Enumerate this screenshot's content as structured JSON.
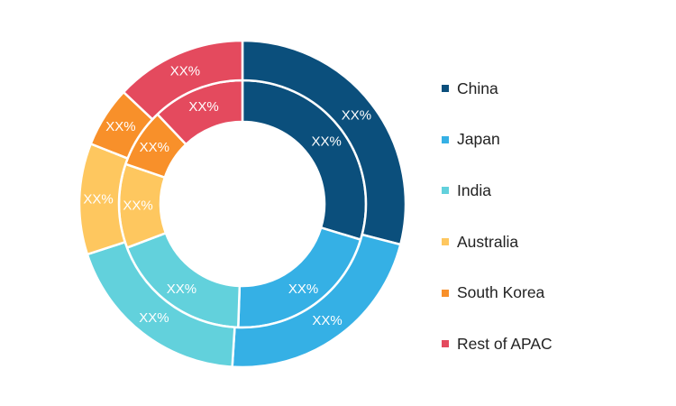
{
  "chart_data": {
    "type": "pie",
    "variant": "double-donut",
    "categories": [
      "China",
      "Japan",
      "India",
      "Australia",
      "South Korea",
      "Rest of APAC"
    ],
    "colors": [
      "#0b4f7c",
      "#35b0e5",
      "#62d1dc",
      "#fec75f",
      "#f8902a",
      "#e44a5e"
    ],
    "series": [
      {
        "ring": "inner",
        "values": [
          27,
          19,
          17,
          10,
          7,
          11
        ],
        "labels": [
          "XX%",
          "XX%",
          "XX%",
          "XX%",
          "XX%",
          "XX%"
        ]
      },
      {
        "ring": "outer",
        "values": [
          29,
          22,
          19,
          11,
          6,
          13
        ],
        "labels": [
          "XX%",
          "XX%",
          "XX%",
          "XX%",
          "XX%",
          "XX%"
        ]
      }
    ],
    "legend_position": "right"
  },
  "legend": {
    "items": [
      {
        "label": "China",
        "color": "#0b4f7c"
      },
      {
        "label": "Japan",
        "color": "#35b0e5"
      },
      {
        "label": "India",
        "color": "#62d1dc"
      },
      {
        "label": "Australia",
        "color": "#fec75f"
      },
      {
        "label": "South Korea",
        "color": "#f8902a"
      },
      {
        "label": "Rest of APAC",
        "color": "#e44a5e"
      }
    ]
  }
}
